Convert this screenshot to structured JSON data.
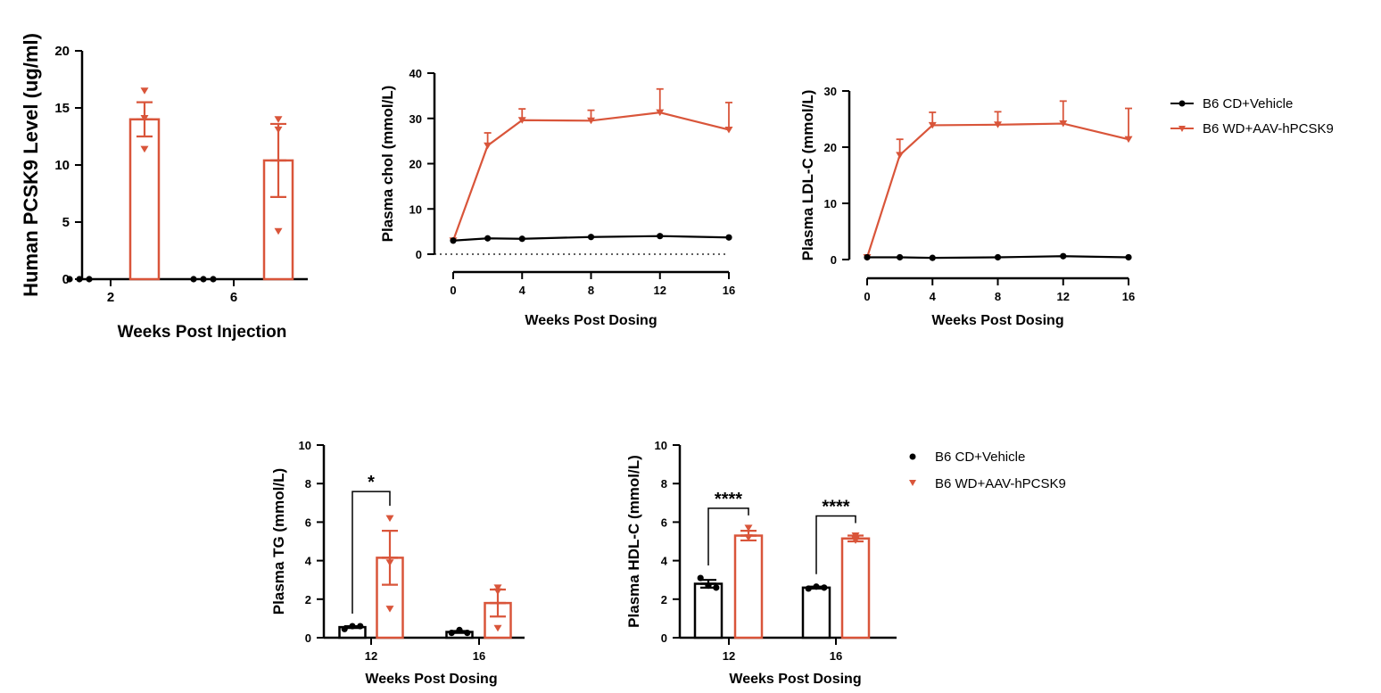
{
  "colors": {
    "control": "#000000",
    "treated": "#D9553A"
  },
  "legend": {
    "control": "B6 CD+Vehicle",
    "treated": "B6 WD+AAV-hPCSK9"
  },
  "chart_data": [
    {
      "id": "pcsk9",
      "type": "bar",
      "ylabel": "Human PCSK9 Level (ug/ml)",
      "xlabel": "Weeks Post Injection",
      "ylim": [
        0,
        20
      ],
      "yticks": [
        0,
        5,
        10,
        15,
        20
      ],
      "categories": [
        "2",
        "6"
      ],
      "series": [
        {
          "name": "B6 CD+Vehicle",
          "values": [
            0,
            0
          ],
          "sem": [
            0,
            0
          ],
          "points": [
            [
              0,
              0,
              0
            ],
            [
              0,
              0,
              0
            ]
          ]
        },
        {
          "name": "B6 WD+AAV-hPCSK9",
          "values": [
            14.0,
            10.4
          ],
          "sem": [
            1.5,
            3.2
          ],
          "points": [
            [
              16.5,
              14.1,
              11.4
            ],
            [
              14.0,
              13.1,
              4.2
            ]
          ]
        }
      ]
    },
    {
      "id": "chol",
      "type": "line",
      "ylabel": "Plasma chol (mmol/L)",
      "xlabel": "Weeks Post Dosing",
      "ylim": [
        0,
        40
      ],
      "yticks": [
        0,
        10,
        20,
        30,
        40
      ],
      "x": [
        0,
        2,
        4,
        8,
        12,
        16
      ],
      "xticks": [
        0,
        4,
        8,
        12,
        16
      ],
      "series": [
        {
          "name": "B6 CD+Vehicle",
          "values": [
            3.0,
            3.5,
            3.4,
            3.8,
            4.0,
            3.7
          ],
          "sem": [
            0,
            0,
            0,
            0,
            0,
            0
          ]
        },
        {
          "name": "B6 WD+AAV-hPCSK9",
          "values": [
            3.0,
            24.0,
            29.6,
            29.5,
            31.3,
            27.5
          ],
          "sem": [
            0,
            2.8,
            2.5,
            2.3,
            5.2,
            6.0
          ]
        }
      ]
    },
    {
      "id": "ldl",
      "type": "line",
      "ylabel": "Plasma LDL-C (mmol/L)",
      "xlabel": "Weeks Post Dosing",
      "ylim": [
        0,
        30
      ],
      "yticks": [
        0,
        10,
        20,
        30
      ],
      "x": [
        0,
        2,
        4,
        8,
        12,
        16
      ],
      "xticks": [
        0,
        4,
        8,
        12,
        16
      ],
      "series": [
        {
          "name": "B6 CD+Vehicle",
          "values": [
            0.4,
            0.4,
            0.3,
            0.4,
            0.6,
            0.4
          ],
          "sem": [
            0,
            0,
            0,
            0,
            0,
            0
          ]
        },
        {
          "name": "B6 WD+AAV-hPCSK9",
          "values": [
            0.4,
            18.6,
            23.9,
            24.0,
            24.2,
            21.4
          ],
          "sem": [
            0,
            2.8,
            2.3,
            2.3,
            4.0,
            5.5
          ]
        }
      ]
    },
    {
      "id": "tg",
      "type": "bar",
      "ylabel": "Plasma TG (mmol/L)",
      "xlabel": "Weeks Post Dosing",
      "ylim": [
        0,
        10
      ],
      "yticks": [
        0,
        2,
        4,
        6,
        8,
        10
      ],
      "categories": [
        "12",
        "16"
      ],
      "series": [
        {
          "name": "B6 CD+Vehicle",
          "values": [
            0.55,
            0.3
          ],
          "sem": [
            0.05,
            0.05
          ],
          "points": [
            [
              0.45,
              0.6,
              0.6
            ],
            [
              0.25,
              0.4,
              0.25
            ]
          ]
        },
        {
          "name": "B6 WD+AAV-hPCSK9",
          "values": [
            4.15,
            1.8
          ],
          "sem": [
            1.4,
            0.7
          ],
          "points": [
            [
              6.2,
              3.9,
              1.5
            ],
            [
              2.6,
              2.4,
              0.5
            ]
          ]
        }
      ],
      "annotations": [
        {
          "category_index": 0,
          "label": "*"
        }
      ]
    },
    {
      "id": "hdl",
      "type": "bar",
      "ylabel": "Plasma HDL-C (mmol/L)",
      "xlabel": "Weeks Post Dosing",
      "ylim": [
        0,
        10
      ],
      "yticks": [
        0,
        2,
        4,
        6,
        8,
        10
      ],
      "categories": [
        "12",
        "16"
      ],
      "series": [
        {
          "name": "B6 CD+Vehicle",
          "values": [
            2.8,
            2.6
          ],
          "sem": [
            0.2,
            0.05
          ],
          "points": [
            [
              3.1,
              2.7,
              2.6
            ],
            [
              2.55,
              2.65,
              2.6
            ]
          ]
        },
        {
          "name": "B6 WD+AAV-hPCSK9",
          "values": [
            5.3,
            5.15
          ],
          "sem": [
            0.25,
            0.15
          ],
          "points": [
            [
              5.7,
              5.2,
              5.2
            ],
            [
              5.3,
              5.1,
              5.05
            ]
          ]
        }
      ],
      "annotations": [
        {
          "category_index": 0,
          "label": "****"
        },
        {
          "category_index": 1,
          "label": "****"
        }
      ]
    }
  ]
}
